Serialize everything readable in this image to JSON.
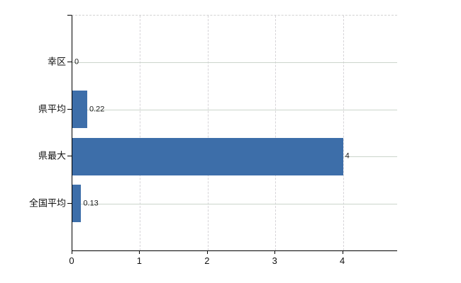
{
  "chart_data": {
    "type": "bar",
    "orientation": "horizontal",
    "title": "",
    "categories": [
      "幸区",
      "県平均",
      "県最大",
      "全国平均"
    ],
    "values": [
      0,
      0.22,
      4,
      0.13
    ],
    "value_labels": [
      "0",
      "0.22",
      "4",
      "0.13"
    ],
    "x_tick_values": [
      0,
      1,
      2,
      3,
      4
    ],
    "x_tick_labels": [
      "0",
      "1",
      "2",
      "3",
      "4"
    ],
    "xlim": [
      0,
      4.8
    ],
    "grid": "on",
    "legend": "none",
    "colors": {
      "bar": "#3d6ea9",
      "h_grid": "#ccd5cc",
      "v_grid": "#d6d4d8",
      "axis": "#000000",
      "text": "#111111",
      "background": "#ffffff"
    }
  }
}
